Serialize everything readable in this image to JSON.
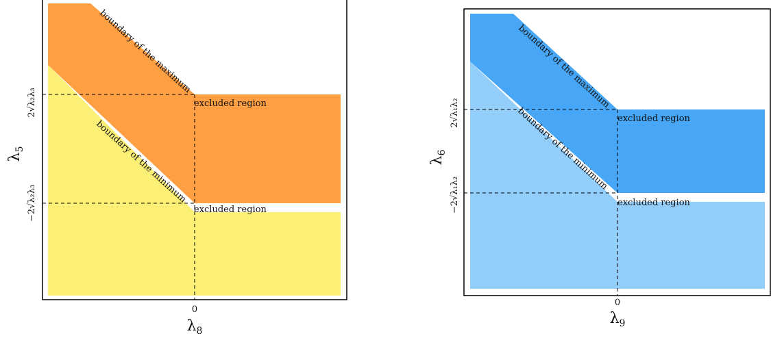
{
  "panels": [
    {
      "id": "left",
      "colors": {
        "upper": "#FF9F43",
        "lower": "#FBF075",
        "frame": "#000000"
      },
      "x_axis": {
        "letter": "λ",
        "sub": "8",
        "tick": "0"
      },
      "y_axis": {
        "letter": "λ",
        "sub": "5"
      },
      "y_ticks": {
        "upper": "2√λ₂λ₃",
        "lower": "−2√λ₂λ₃"
      },
      "labels": {
        "boundary_max": "boundary of the maximum",
        "boundary_min": "boundary of the minimum",
        "excluded_upper": "excluded region",
        "excluded_lower": "excluded region"
      }
    },
    {
      "id": "right",
      "colors": {
        "upper": "#47A6F5",
        "lower": "#93CEFA",
        "frame": "#000000"
      },
      "x_axis": {
        "letter": "λ",
        "sub": "9",
        "tick": "0"
      },
      "y_axis": {
        "letter": "λ",
        "sub": "6"
      },
      "y_ticks": {
        "upper": "2√λ₁λ₂",
        "lower": "−2√λ₁λ₂"
      },
      "labels": {
        "boundary_max": "boundary of the maximum",
        "boundary_min": "boundary of the minimum",
        "excluded_upper": "excluded region",
        "excluded_lower": "excluded region"
      }
    }
  ]
}
